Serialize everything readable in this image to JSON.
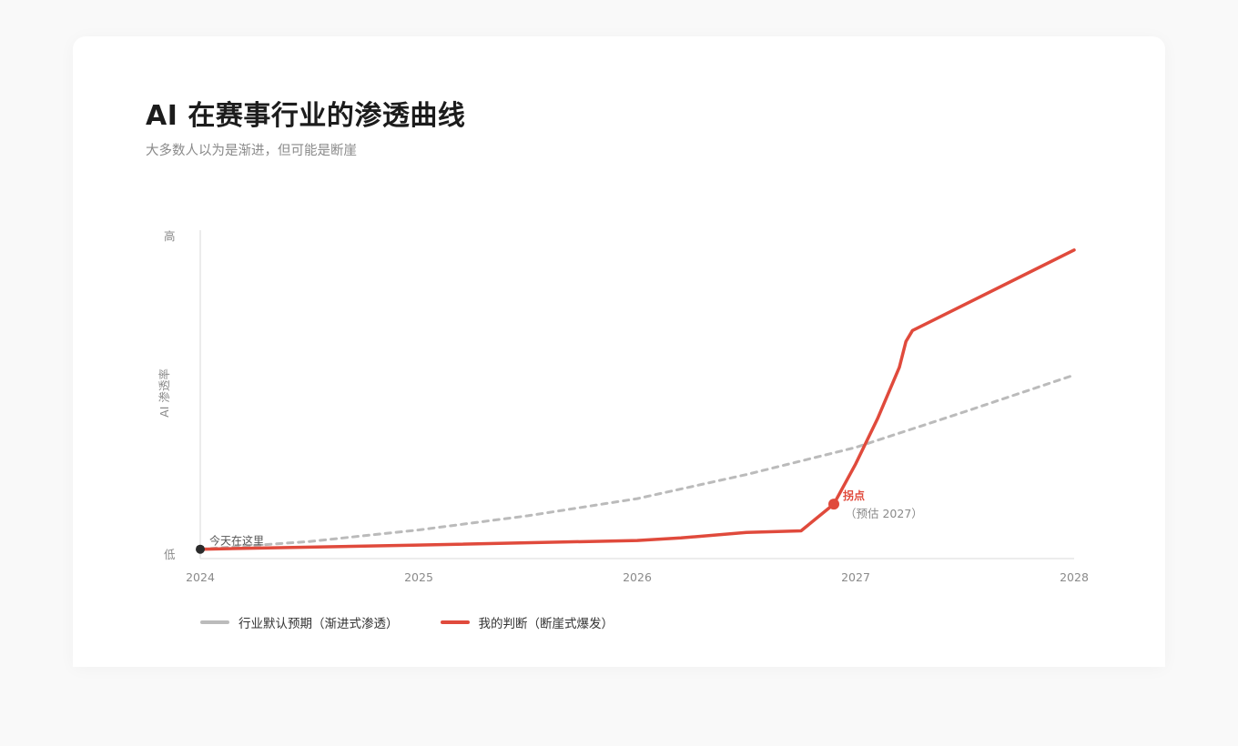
{
  "header": {
    "title": "AI 在赛事行业的渗透曲线",
    "subtitle": "大多数人以为是渐进，但可能是断崖"
  },
  "colors": {
    "background": "#f9f9f9",
    "card": "#ffffff",
    "default_series": "#bbbbbb",
    "my_series": "#e04a3c",
    "today_marker": "#2b2b2b",
    "axis": "#e6e6e6"
  },
  "chart_data": {
    "type": "line",
    "xlabel": "",
    "ylabel": "AI 渗透率",
    "x_ticks": [
      "2024",
      "2025",
      "2026",
      "2027",
      "2028"
    ],
    "y_ticks": [
      "低",
      "高"
    ],
    "xlim": [
      2024,
      2028
    ],
    "ylim": [
      0,
      100
    ],
    "grid": false,
    "legend_position": "bottom-left",
    "series": [
      {
        "name": "行业默认预期（渐进式渗透）",
        "style": "dashed",
        "color": "#bbbbbb",
        "x": [
          2024,
          2024.5,
          2025,
          2025.5,
          2026,
          2026.5,
          2027,
          2027.5,
          2028
        ],
        "y": [
          1.5,
          3.9,
          7.5,
          11.9,
          17.2,
          24.7,
          33.1,
          44.2,
          55.6
        ]
      },
      {
        "name": "我的判断（断崖式爆发）",
        "style": "solid",
        "color": "#e04a3c",
        "x": [
          2024,
          2025,
          2026,
          2026.2,
          2026.5,
          2026.75,
          2026.9,
          2027,
          2027.1,
          2027.2,
          2027.23,
          2027.26,
          2028
        ],
        "y": [
          1.5,
          2.8,
          4.2,
          5.0,
          6.7,
          7.2,
          15.5,
          28.0,
          42.0,
          58.0,
          66.0,
          69.4,
          94.4
        ]
      }
    ],
    "annotations": [
      {
        "label": "今天在这里",
        "x": 2024,
        "y": 1.5
      },
      {
        "label": "拐点",
        "sublabel": "（预估 2027）",
        "x": 2026.9,
        "y": 15.5
      }
    ]
  }
}
